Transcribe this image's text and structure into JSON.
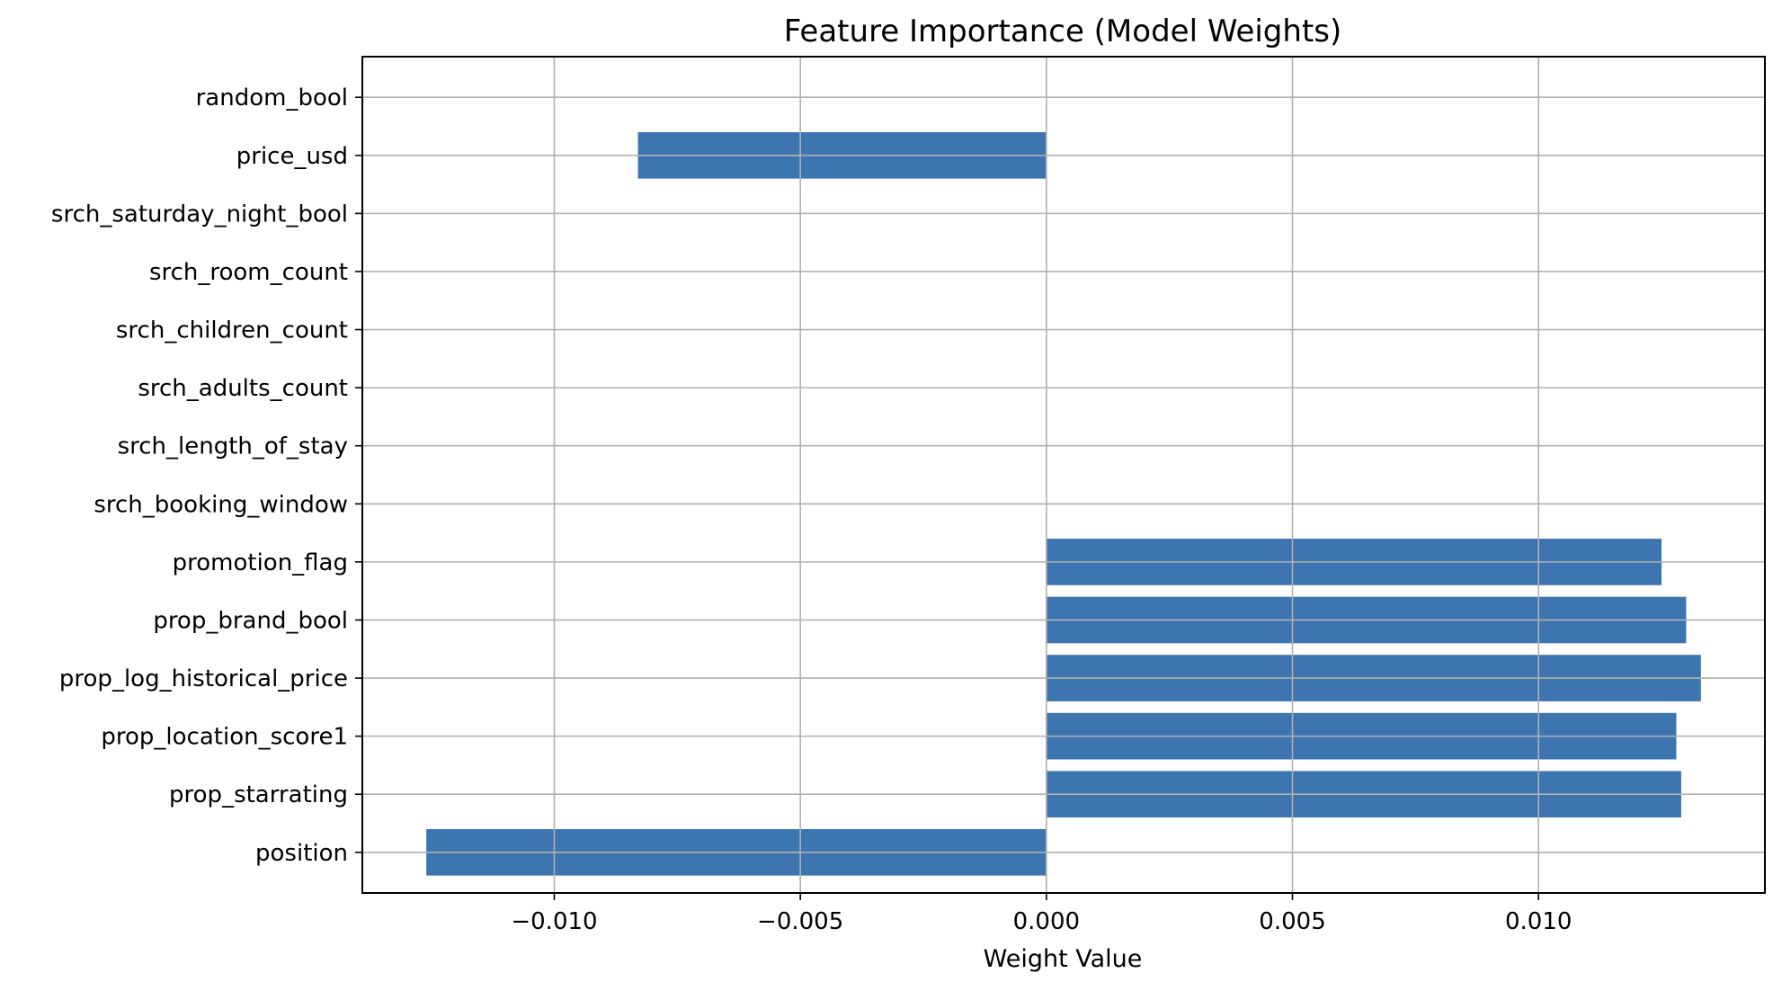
{
  "chart_data": {
    "type": "bar",
    "orientation": "horizontal",
    "title": "Feature Importance (Model Weights)",
    "xlabel": "Weight Value",
    "ylabel": "",
    "categories": [
      "position",
      "prop_starrating",
      "prop_location_score1",
      "prop_log_historical_price",
      "prop_brand_bool",
      "promotion_flag",
      "srch_booking_window",
      "srch_length_of_stay",
      "srch_adults_count",
      "srch_children_count",
      "srch_room_count",
      "srch_saturday_night_bool",
      "price_usd",
      "random_bool"
    ],
    "values": [
      -0.0126,
      0.0129,
      0.0128,
      0.0133,
      0.013,
      0.0125,
      0,
      0,
      0,
      0,
      0,
      0,
      -0.0083,
      0
    ],
    "xlim": [
      -0.0139,
      0.0146
    ],
    "xticks": [
      -0.01,
      -0.005,
      0,
      0.005,
      0.01
    ],
    "xtick_labels": [
      "−0.010",
      "−0.005",
      "0.000",
      "0.005",
      "0.010"
    ],
    "grid": true,
    "colors": {
      "bar": "#3c75b0"
    }
  }
}
